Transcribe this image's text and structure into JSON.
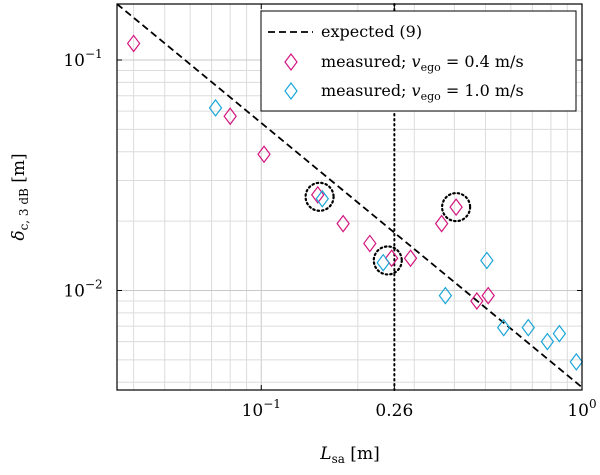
{
  "chart_data": {
    "type": "scatter",
    "x_scale": "log",
    "y_scale": "log",
    "xlim": [
      0.0355,
      1.0
    ],
    "ylim": [
      0.0037,
      0.175
    ],
    "grid": true,
    "legend_position": "top-right",
    "xlabel": {
      "main": "L",
      "sub": "sa",
      "unit": " [m]"
    },
    "ylabel": {
      "main": "δ",
      "sub": "c, 3 dB",
      "unit": " [m]"
    },
    "x_ticks": [
      {
        "value": 0.1,
        "base": "10",
        "exp": "−1"
      },
      {
        "value": 0.26,
        "text": "0.26"
      },
      {
        "value": 1.0,
        "base": "10",
        "exp": "0"
      }
    ],
    "y_ticks": [
      {
        "value": 0.1,
        "base": "10",
        "exp": "−1"
      },
      {
        "value": 0.01,
        "base": "10",
        "exp": "−2"
      }
    ],
    "reference_line": {
      "x": 0.26,
      "style": "dotted"
    },
    "expected_line": {
      "name": "expected (9)",
      "x": [
        0.0355,
        1.0
      ],
      "y": [
        0.175,
        0.0038
      ]
    },
    "series": [
      {
        "name_prefix": "measured; ",
        "var": "v",
        "var_sub": "ego",
        "value": " = 0.4 m/s",
        "color": "#d4157e",
        "points": [
          {
            "x": 0.04,
            "y": 0.118
          },
          {
            "x": 0.08,
            "y": 0.057
          },
          {
            "x": 0.102,
            "y": 0.039
          },
          {
            "x": 0.15,
            "y": 0.026
          },
          {
            "x": 0.18,
            "y": 0.0195
          },
          {
            "x": 0.218,
            "y": 0.016
          },
          {
            "x": 0.255,
            "y": 0.0138
          },
          {
            "x": 0.292,
            "y": 0.0138
          },
          {
            "x": 0.365,
            "y": 0.0195
          },
          {
            "x": 0.405,
            "y": 0.023
          },
          {
            "x": 0.47,
            "y": 0.009
          },
          {
            "x": 0.51,
            "y": 0.0095
          }
        ]
      },
      {
        "name_prefix": "measured; ",
        "var": "v",
        "var_sub": "ego",
        "value": " = 1.0 m/s",
        "color": "#1ba6d8",
        "points": [
          {
            "x": 0.072,
            "y": 0.062
          },
          {
            "x": 0.155,
            "y": 0.025
          },
          {
            "x": 0.24,
            "y": 0.0132
          },
          {
            "x": 0.375,
            "y": 0.0095
          },
          {
            "x": 0.505,
            "y": 0.0135
          },
          {
            "x": 0.57,
            "y": 0.0069
          },
          {
            "x": 0.68,
            "y": 0.0069
          },
          {
            "x": 0.78,
            "y": 0.006
          },
          {
            "x": 0.85,
            "y": 0.0065
          },
          {
            "x": 0.96,
            "y": 0.0049
          }
        ]
      }
    ],
    "circled_points": [
      {
        "x": 0.152,
        "y": 0.0255
      },
      {
        "x": 0.248,
        "y": 0.0135
      },
      {
        "x": 0.405,
        "y": 0.023
      }
    ]
  }
}
